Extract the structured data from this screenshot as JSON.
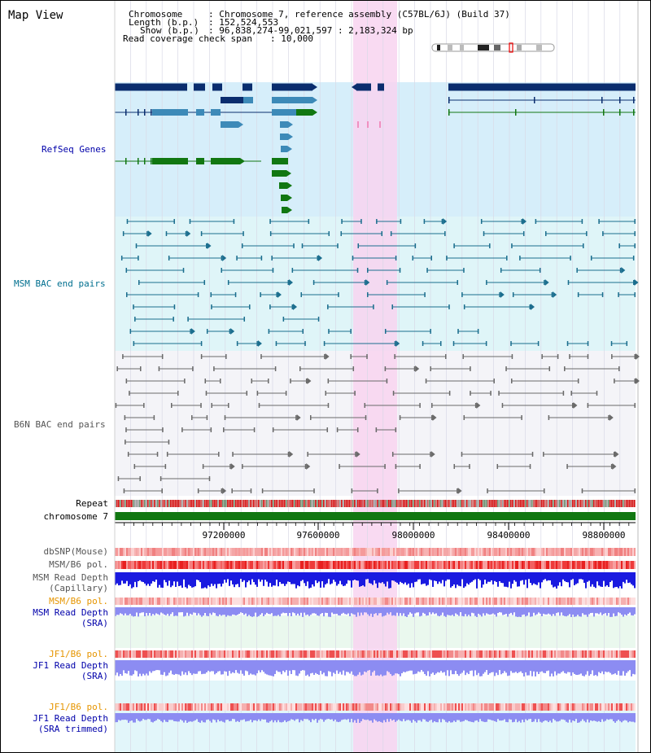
{
  "page": {
    "title": "Map View"
  },
  "info": {
    "chromosome_key": "Chromosome",
    "chromosome_val": ": Chromosome 7, reference assembly (C57BL/6J) (Build 37)",
    "length_key": "Length (b.p.)",
    "length_val": ": 152,524,553",
    "show_key": "Show (b.p.)",
    "show_val": ": 96,838,274-99,021,597 : 2,183,324 bp",
    "coverage_key": "Read coverage check span",
    "coverage_val": ": 10,000"
  },
  "tracks": {
    "refseq": "RefSeq Genes",
    "msm_bac": "MSM BAC end pairs",
    "b6n_bac": "B6N BAC end pairs",
    "repeat": "Repeat",
    "chromosome": "chromosome 7",
    "dbsnp": "dbSNP(Mouse)",
    "msm_b6_pol": "MSM/B6 pol.",
    "msm_read_depth_cap_1": "MSM Read Depth",
    "msm_read_depth_cap_2": "(Capillary)",
    "msm_b6_pol_2": "MSM/B6 pol.",
    "msm_read_depth_sra_1": "MSM Read Depth",
    "msm_read_depth_sra_2": "(SRA)",
    "jf1_b6_pol": "JF1/B6 pol.",
    "jf1_read_depth_sra_1": "JF1 Read Depth",
    "jf1_read_depth_sra_2": "(SRA)",
    "jf1_b6_pol_2": "JF1/B6 pol.",
    "jf1_read_depth_trim_1": "JF1 Read Depth",
    "jf1_read_depth_trim_2": "(SRA trimmed)"
  },
  "axis": {
    "ticks": [
      "97200000",
      "97600000",
      "98000000",
      "98400000",
      "98800000"
    ]
  },
  "colors": {
    "refseq_bg": "#d6eefa",
    "msm_bg": "#dff5f8",
    "b6n_bg": "#f4f4f8",
    "highlight": "#f8d4f0",
    "navy": "#0a2d6e",
    "steel": "#3d8ab8",
    "green": "#117711",
    "teal_line": "#1b6e8e",
    "gray_line": "#6a6a6a",
    "repeat_red": "#d31010",
    "chrom_green": "#117711",
    "depth_blue": "#1a1ae0",
    "depth_light": "#8c8cf2"
  }
}
